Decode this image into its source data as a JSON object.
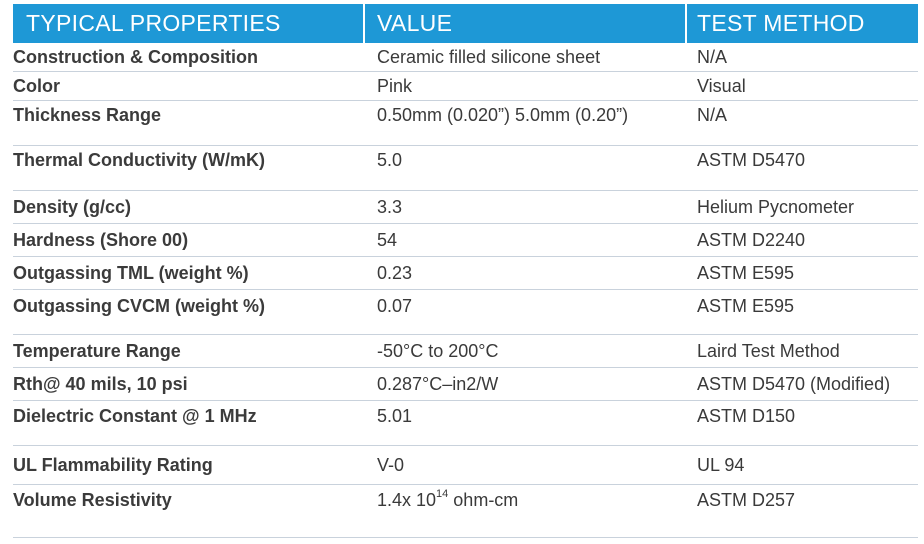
{
  "header": {
    "col1": "TYPICAL PROPERTIES",
    "col2": "VALUE",
    "col3": "TEST METHOD"
  },
  "rows": [
    {
      "property": "Construction & Composition",
      "value": "Ceramic filled silicone sheet",
      "method": "N/A"
    },
    {
      "property": "Color",
      "value": "Pink",
      "method": "Visual"
    },
    {
      "property": "Thickness Range",
      "value": "0.50mm (0.020”) 5.0mm (0.20”)",
      "method": "N/A"
    },
    {
      "property": "Thermal Conductivity (W/mK)",
      "value": "5.0",
      "method": "ASTM D5470"
    },
    {
      "property": "Density (g/cc)",
      "value": "3.3",
      "method": "Helium Pycnometer"
    },
    {
      "property": "Hardness (Shore 00)",
      "value": "54",
      "method": "ASTM D2240"
    },
    {
      "property": "Outgassing TML (weight %)",
      "value": "0.23",
      "method": "ASTM E595"
    },
    {
      "property": "Outgassing CVCM (weight %)",
      "value": "0.07",
      "method": "ASTM E595"
    },
    {
      "property": "Temperature Range",
      "value": "-50°C to 200°C",
      "method": "Laird Test Method"
    },
    {
      "property": "Rth@ 40 mils, 10 psi",
      "value": "0.287°C–in2/W",
      "method": "ASTM D5470 (Modified)"
    },
    {
      "property": "Dielectric Constant @ 1 MHz",
      "value": "5.01",
      "method": "ASTM D150"
    },
    {
      "property": "UL Flammability Rating",
      "value": "V-0",
      "method": "UL 94"
    },
    {
      "property": "Volume Resistivity",
      "value_prefix": "1.4x 10",
      "value_exp": "14",
      "value_suffix": " ohm-cm",
      "method": "ASTM D257"
    }
  ],
  "colors": {
    "header_bg": "#1e98d6",
    "header_text": "#ffffff",
    "body_text": "#3a3a3a",
    "rule": "#c9d2dc"
  }
}
